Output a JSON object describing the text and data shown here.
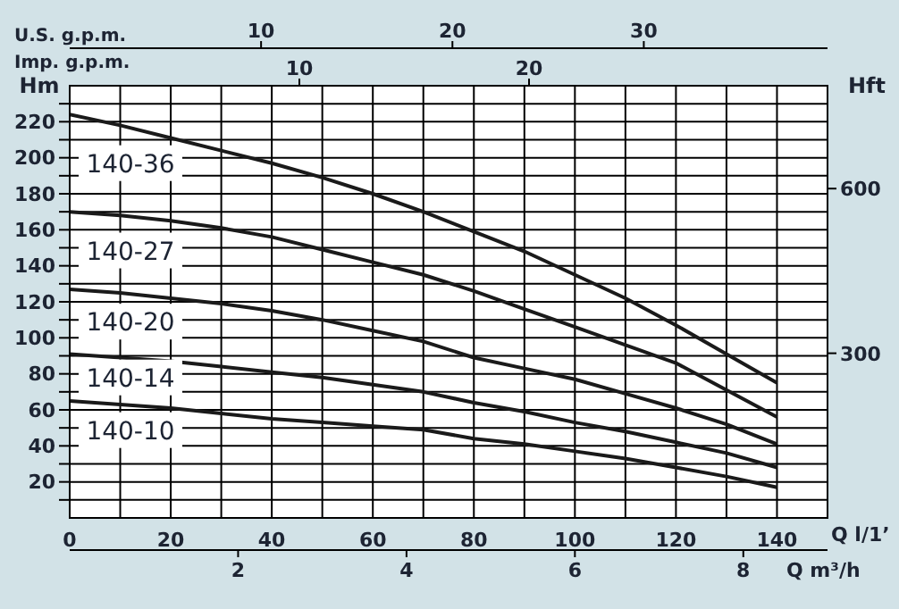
{
  "chart_data": {
    "type": "line",
    "xlabel": "Q l/1’",
    "ylabel": "Hm",
    "y2label": "Hft",
    "x2label": "U.S. g.p.m.",
    "x": [
      0,
      10,
      20,
      30,
      40,
      50,
      60,
      70,
      80,
      90,
      100,
      110,
      120,
      130,
      140
    ],
    "series": [
      {
        "name": "140-36",
        "color": "#1a1a1a",
        "values": [
          224,
          218,
          211,
          204,
          197,
          189,
          180,
          170,
          159,
          148,
          135,
          122,
          107,
          91,
          75
        ]
      },
      {
        "name": "140-27",
        "color": "#1a1a1a",
        "values": [
          170,
          168,
          165,
          161,
          156,
          149,
          142,
          135,
          126,
          116,
          106,
          96,
          86,
          71,
          56
        ]
      },
      {
        "name": "140-20",
        "color": "#1a1a1a",
        "values": [
          127,
          125,
          122,
          119,
          115,
          110,
          104,
          98,
          89,
          83,
          77,
          69,
          61,
          52,
          41
        ]
      },
      {
        "name": "140-14",
        "color": "#1a1a1a",
        "values": [
          91,
          89,
          87,
          84,
          81,
          78,
          74,
          70,
          64,
          59,
          53,
          48,
          42,
          36,
          28
        ]
      },
      {
        "name": "140-10",
        "color": "#1a1a1a",
        "values": [
          65,
          63,
          61,
          58,
          55,
          53,
          51,
          49,
          44,
          41,
          37,
          33,
          28,
          23,
          17
        ]
      }
    ],
    "xlim": [
      0,
      150
    ],
    "xticks": [
      0,
      {
        "value": 10,
        "label": null
      },
      20,
      {
        "value": 30,
        "label": null
      },
      40,
      {
        "value": 50,
        "label": null
      },
      60,
      {
        "value": 70,
        "label": null
      },
      80,
      {
        "value": 90,
        "label": null
      },
      100,
      {
        "value": 110,
        "label": null
      },
      120,
      {
        "value": 130,
        "label": null
      },
      140
    ],
    "ylim": [
      0,
      240
    ],
    "yticks": [
      {
        "value": 10,
        "label": null
      },
      20,
      {
        "value": 30,
        "label": null
      },
      40,
      {
        "value": 50,
        "label": null
      },
      60,
      {
        "value": 70,
        "label": null
      },
      80,
      {
        "value": 90,
        "label": null
      },
      100,
      {
        "value": 110,
        "label": null
      },
      120,
      {
        "value": 130,
        "label": null
      },
      140,
      {
        "value": 150,
        "label": null
      },
      160,
      {
        "value": 170,
        "label": null
      },
      180,
      {
        "value": 190,
        "label": null
      },
      200,
      {
        "value": 210,
        "label": null
      },
      220,
      {
        "value": 230,
        "label": null
      }
    ],
    "y2lim": [
      0,
      787.4
    ],
    "y2ticks": [
      300,
      600
    ],
    "x2lim": [
      0,
      39.6
    ],
    "x2ticks": [
      10,
      20,
      30
    ],
    "annotations": [
      "Imp. g.p.m.",
      "10",
      "20",
      "Q m³/h",
      "2",
      "4",
      "6",
      "8"
    ],
    "grid": true,
    "marker": "none",
    "line_style": "solid"
  }
}
